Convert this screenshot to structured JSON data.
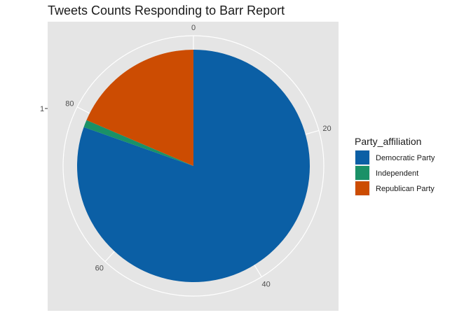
{
  "chart_data": {
    "type": "pie",
    "title": "Tweets Counts Responding to Barr Report",
    "y_tick_label": "1",
    "angle_ticks": [
      "0",
      "20",
      "40",
      "60",
      "80"
    ],
    "angle_tick_values": [
      0,
      20,
      40,
      60,
      80
    ],
    "total": 97,
    "categories": [
      "Democratic Party",
      "Independent",
      "Republican Party"
    ],
    "values": [
      78,
      1,
      18
    ],
    "colors": [
      "#0b5fa5",
      "#1a9167",
      "#cc4c02"
    ],
    "legend": {
      "title": "Party_affiliation",
      "placement": "right"
    },
    "panel_background": "#e5e5e5",
    "grid": true
  }
}
